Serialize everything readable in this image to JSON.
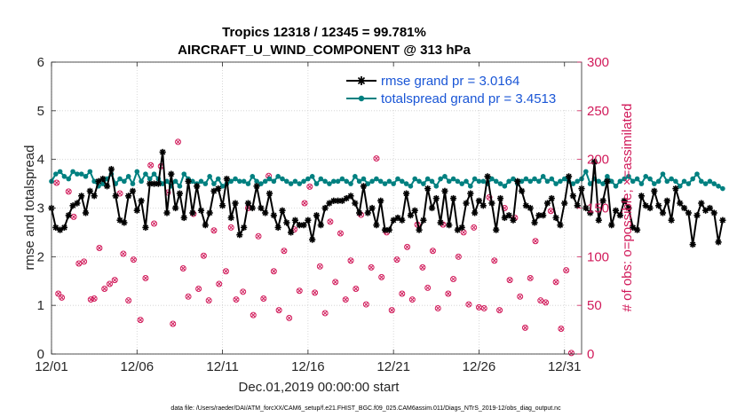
{
  "chart_data": {
    "type": "line",
    "title_line1": "Tropics 12318 / 12345 = 99.781%",
    "title_line2": "AIRCRAFT_U_WIND_COMPONENT @ 313 hPa",
    "xlabel": "Dec.01,2019 00:00:00 start",
    "ylabel": "rmse and totalspread",
    "y2label": "# of obs: o=possible; ×=assimilated",
    "footnote": "data file: /Users/raeder/DAI/ATM_forcXX/CAM6_setup/f.e21.FHIST_BGC.f09_025.CAM6assim.011/Diags_NTrS_2019-12/obs_diag_output.nc",
    "xlim": [
      1,
      32
    ],
    "ylim": [
      0,
      6
    ],
    "y2lim": [
      0,
      300
    ],
    "x_ticks": [
      1,
      6,
      11,
      16,
      21,
      26,
      31
    ],
    "x_tick_labels": [
      "12/01",
      "12/06",
      "12/11",
      "12/16",
      "12/21",
      "12/26",
      "12/31"
    ],
    "y_ticks": [
      0,
      1,
      2,
      3,
      4,
      5,
      6
    ],
    "y2_ticks": [
      0,
      50,
      100,
      150,
      200,
      250,
      300
    ],
    "colors": {
      "rmse": "#000000",
      "spread": "#008080",
      "obs": "#d11a5a",
      "legend_text": "#1a56d6"
    },
    "x_start": 1.0,
    "x_step": 0.25,
    "series": [
      {
        "name": "rmse grand pr = 3.0164",
        "values": [
          3.0,
          2.6,
          2.55,
          2.6,
          2.85,
          3.05,
          3.1,
          3.25,
          2.9,
          3.35,
          3.25,
          3.55,
          3.6,
          3.45,
          3.8,
          3.25,
          2.75,
          2.7,
          3.25,
          3.35,
          2.95,
          3.15,
          2.6,
          3.5,
          3.5,
          3.5,
          4.15,
          2.9,
          3.7,
          3.0,
          3.3,
          2.8,
          3.55,
          2.9,
          3.45,
          2.95,
          2.65,
          2.9,
          3.35,
          3.4,
          3.05,
          3.6,
          2.8,
          3.1,
          2.45,
          2.6,
          3.1,
          3.0,
          3.45,
          3.0,
          2.9,
          3.3,
          2.85,
          2.6,
          2.95,
          2.7,
          2.5,
          2.75,
          2.65,
          2.65,
          2.75,
          2.35,
          2.85,
          2.65,
          3.0,
          3.1,
          3.15,
          3.15,
          3.15,
          3.2,
          3.25,
          3.1,
          2.9,
          3.45,
          2.9,
          3.0,
          2.65,
          3.15,
          2.55,
          2.55,
          2.75,
          2.8,
          2.75,
          3.3,
          2.85,
          2.95,
          2.55,
          2.75,
          3.4,
          3.0,
          3.2,
          2.7,
          3.35,
          2.65,
          3.2,
          2.55,
          2.6,
          3.1,
          3.3,
          2.9,
          3.15,
          3.05,
          3.65,
          3.1,
          2.55,
          3.2,
          2.8,
          2.85,
          2.75,
          3.55,
          3.35,
          3.05,
          3.0,
          2.7,
          2.85,
          2.85,
          3.1,
          3.2,
          2.8,
          2.65,
          3.1,
          3.65,
          3.25,
          3.05,
          3.4,
          3.0,
          2.9,
          3.95,
          2.75,
          3.15,
          3.55,
          2.65,
          2.95,
          2.85,
          3.15,
          3.0,
          2.6,
          2.55,
          3.25,
          3.05,
          3.0,
          3.35,
          3.05,
          2.9,
          3.15,
          2.75,
          3.4,
          3.1,
          3.0,
          2.9,
          2.25,
          2.85,
          3.1,
          2.95,
          3.0,
          2.9,
          2.3,
          2.75
        ]
      },
      {
        "name": "totalspread grand pr = 3.4513",
        "values": [
          3.55,
          3.7,
          3.75,
          3.65,
          3.6,
          3.75,
          3.7,
          3.7,
          3.65,
          3.75,
          3.55,
          3.45,
          3.5,
          3.6,
          3.7,
          3.5,
          3.6,
          3.55,
          3.65,
          3.5,
          3.75,
          3.55,
          3.7,
          3.6,
          3.7,
          3.6,
          3.5,
          3.55,
          3.45,
          3.55,
          3.45,
          3.7,
          3.6,
          3.55,
          3.5,
          3.55,
          3.5,
          3.65,
          3.5,
          3.6,
          3.45,
          3.5,
          3.55,
          3.6,
          3.55,
          3.55,
          3.5,
          3.65,
          3.55,
          3.5,
          3.55,
          3.6,
          3.55,
          3.65,
          3.6,
          3.55,
          3.5,
          3.55,
          3.5,
          3.55,
          3.6,
          3.65,
          3.5,
          3.6,
          3.55,
          3.5,
          3.55,
          3.55,
          3.6,
          3.55,
          3.5,
          3.65,
          3.55,
          3.6,
          3.5,
          3.55,
          3.6,
          3.55,
          3.5,
          3.55,
          3.5,
          3.6,
          3.55,
          3.5,
          3.45,
          3.6,
          3.55,
          3.5,
          3.6,
          3.55,
          3.45,
          3.6,
          3.65,
          3.55,
          3.6,
          3.55,
          3.5,
          3.55,
          3.45,
          3.6,
          3.55,
          3.55,
          3.5,
          3.6,
          3.55,
          3.5,
          3.45,
          3.55,
          3.6,
          3.5,
          3.55,
          3.6,
          3.55,
          3.6,
          3.55,
          3.65,
          3.55,
          3.6,
          3.5,
          3.55,
          3.6,
          3.55,
          3.5,
          3.55,
          3.6,
          3.75,
          3.5,
          3.6,
          3.55,
          3.5,
          3.65,
          3.55,
          3.45,
          3.55,
          3.6,
          3.65,
          3.55,
          3.6,
          3.5,
          3.65,
          3.6,
          3.5,
          3.55,
          3.7,
          3.55,
          3.6,
          3.55,
          3.45,
          3.55,
          3.5,
          3.6,
          3.7,
          3.55,
          3.5,
          3.55,
          3.5,
          3.45,
          3.4
        ]
      }
    ],
    "obs_counts": [
      {
        "x": 1.3,
        "v": 176
      },
      {
        "x": 1.4,
        "v": 62
      },
      {
        "x": 1.6,
        "v": 58
      },
      {
        "x": 2.0,
        "v": 167
      },
      {
        "x": 2.3,
        "v": 141
      },
      {
        "x": 2.6,
        "v": 93
      },
      {
        "x": 2.9,
        "v": 95
      },
      {
        "x": 3.3,
        "v": 56
      },
      {
        "x": 3.5,
        "v": 57
      },
      {
        "x": 3.8,
        "v": 109
      },
      {
        "x": 4.1,
        "v": 67
      },
      {
        "x": 4.4,
        "v": 72
      },
      {
        "x": 4.7,
        "v": 76
      },
      {
        "x": 5.0,
        "v": 165
      },
      {
        "x": 5.2,
        "v": 103
      },
      {
        "x": 5.5,
        "v": 55
      },
      {
        "x": 5.8,
        "v": 97
      },
      {
        "x": 6.2,
        "v": 35
      },
      {
        "x": 6.5,
        "v": 78
      },
      {
        "x": 6.8,
        "v": 194
      },
      {
        "x": 7.0,
        "v": 134
      },
      {
        "x": 7.4,
        "v": 193
      },
      {
        "x": 7.8,
        "v": 166
      },
      {
        "x": 8.1,
        "v": 31
      },
      {
        "x": 8.4,
        "v": 218
      },
      {
        "x": 8.7,
        "v": 88
      },
      {
        "x": 9.0,
        "v": 59
      },
      {
        "x": 9.3,
        "v": 144
      },
      {
        "x": 9.6,
        "v": 67
      },
      {
        "x": 9.9,
        "v": 101
      },
      {
        "x": 10.2,
        "v": 55
      },
      {
        "x": 10.5,
        "v": 127
      },
      {
        "x": 10.8,
        "v": 72
      },
      {
        "x": 11.2,
        "v": 85
      },
      {
        "x": 11.5,
        "v": 130
      },
      {
        "x": 11.8,
        "v": 56
      },
      {
        "x": 12.2,
        "v": 64
      },
      {
        "x": 12.5,
        "v": 150
      },
      {
        "x": 12.8,
        "v": 40
      },
      {
        "x": 13.1,
        "v": 121
      },
      {
        "x": 13.4,
        "v": 57
      },
      {
        "x": 13.7,
        "v": 183
      },
      {
        "x": 14.0,
        "v": 85
      },
      {
        "x": 14.3,
        "v": 45
      },
      {
        "x": 14.6,
        "v": 106
      },
      {
        "x": 14.9,
        "v": 37
      },
      {
        "x": 15.2,
        "v": 128
      },
      {
        "x": 15.5,
        "v": 65
      },
      {
        "x": 15.8,
        "v": 155
      },
      {
        "x": 16.1,
        "v": 172
      },
      {
        "x": 16.4,
        "v": 63
      },
      {
        "x": 16.7,
        "v": 90
      },
      {
        "x": 17.0,
        "v": 42
      },
      {
        "x": 17.3,
        "v": 136
      },
      {
        "x": 17.6,
        "v": 74
      },
      {
        "x": 17.9,
        "v": 124
      },
      {
        "x": 18.2,
        "v": 56
      },
      {
        "x": 18.5,
        "v": 96
      },
      {
        "x": 18.8,
        "v": 67
      },
      {
        "x": 19.1,
        "v": 143
      },
      {
        "x": 19.4,
        "v": 51
      },
      {
        "x": 19.7,
        "v": 89
      },
      {
        "x": 20.0,
        "v": 201
      },
      {
        "x": 20.3,
        "v": 79
      },
      {
        "x": 20.6,
        "v": 125
      },
      {
        "x": 20.9,
        "v": 45
      },
      {
        "x": 21.2,
        "v": 97
      },
      {
        "x": 21.5,
        "v": 62
      },
      {
        "x": 21.8,
        "v": 110
      },
      {
        "x": 22.1,
        "v": 56
      },
      {
        "x": 22.4,
        "v": 133
      },
      {
        "x": 22.7,
        "v": 89
      },
      {
        "x": 23.0,
        "v": 68
      },
      {
        "x": 23.3,
        "v": 106
      },
      {
        "x": 23.6,
        "v": 47
      },
      {
        "x": 23.9,
        "v": 133
      },
      {
        "x": 24.2,
        "v": 62
      },
      {
        "x": 24.5,
        "v": 77
      },
      {
        "x": 24.8,
        "v": 100
      },
      {
        "x": 25.1,
        "v": 125
      },
      {
        "x": 25.4,
        "v": 51
      },
      {
        "x": 25.7,
        "v": 130
      },
      {
        "x": 26.0,
        "v": 48
      },
      {
        "x": 26.3,
        "v": 47
      },
      {
        "x": 26.6,
        "v": 161
      },
      {
        "x": 26.9,
        "v": 96
      },
      {
        "x": 27.2,
        "v": 45
      },
      {
        "x": 27.5,
        "v": 150
      },
      {
        "x": 27.8,
        "v": 76
      },
      {
        "x": 28.1,
        "v": 140
      },
      {
        "x": 28.4,
        "v": 59
      },
      {
        "x": 28.7,
        "v": 27
      },
      {
        "x": 29.0,
        "v": 78
      },
      {
        "x": 29.3,
        "v": 116
      },
      {
        "x": 29.6,
        "v": 55
      },
      {
        "x": 29.9,
        "v": 53
      },
      {
        "x": 30.2,
        "v": 147
      },
      {
        "x": 30.5,
        "v": 74
      },
      {
        "x": 30.8,
        "v": 26
      },
      {
        "x": 31.1,
        "v": 86
      },
      {
        "x": 31.4,
        "v": 1
      }
    ]
  }
}
